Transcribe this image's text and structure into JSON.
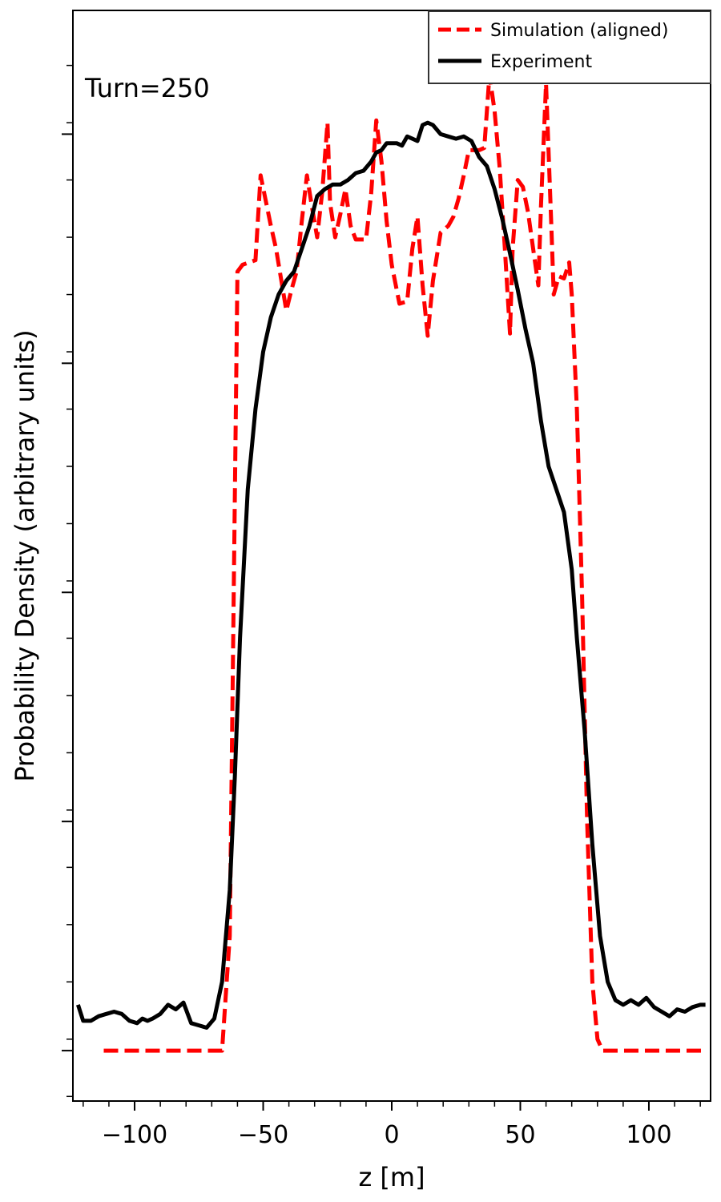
{
  "chart_data": {
    "type": "line",
    "title": "",
    "xlabel": "z [m]",
    "ylabel": "Probability Density (arbitrary units)",
    "annotation": "Turn=250",
    "xlim": [
      -124,
      124
    ],
    "ylim": [
      -0.22,
      4.54
    ],
    "x_ticks": [
      -100,
      -50,
      0,
      50,
      100
    ],
    "x_tick_labels": [
      "−100",
      "−50",
      "0",
      "50",
      "100"
    ],
    "y_ticks": [
      0,
      1,
      2,
      3,
      4
    ],
    "y_tick_labels_shown": false,
    "grid": false,
    "legend_position": "top-right",
    "series": [
      {
        "name": "Simulation (aligned)",
        "color": "#ff0000",
        "style": "dashed",
        "x": [
          -112,
          -66,
          -63,
          -60,
          -58,
          -53,
          -51,
          -47,
          -45,
          -41,
          -39,
          -37,
          -35,
          -33,
          -31,
          -29,
          -27,
          -25,
          -24,
          -22,
          -20,
          -18,
          -16,
          -14,
          -12,
          -10,
          -8,
          -6,
          -4,
          -2,
          0,
          3,
          6,
          8,
          10,
          12,
          14,
          16,
          19,
          22,
          24,
          26,
          28,
          30,
          34,
          36,
          38,
          40,
          42,
          44,
          46,
          47,
          49,
          51,
          53,
          55,
          57,
          58,
          60,
          62,
          63,
          65,
          67,
          69,
          70,
          72,
          74,
          76,
          78,
          80,
          82,
          85,
          88,
          122
        ],
        "y": [
          0,
          0,
          0.5,
          3.4,
          3.43,
          3.45,
          3.82,
          3.6,
          3.5,
          3.23,
          3.32,
          3.4,
          3.62,
          3.82,
          3.68,
          3.55,
          3.75,
          4.05,
          3.7,
          3.55,
          3.65,
          3.76,
          3.6,
          3.54,
          3.54,
          3.54,
          3.74,
          4.06,
          3.88,
          3.62,
          3.43,
          3.26,
          3.27,
          3.5,
          3.64,
          3.34,
          3.12,
          3.36,
          3.57,
          3.6,
          3.64,
          3.72,
          3.82,
          3.93,
          3.93,
          3.94,
          4.26,
          4.1,
          3.85,
          3.5,
          3.13,
          3.5,
          3.8,
          3.77,
          3.66,
          3.5,
          3.34,
          3.68,
          4.22,
          3.62,
          3.3,
          3.38,
          3.37,
          3.44,
          3.3,
          2.8,
          2.0,
          1.0,
          0.3,
          0.05,
          0,
          0,
          0,
          0
        ]
      },
      {
        "name": "Experiment",
        "color": "#000000",
        "style": "solid",
        "x": [
          -122,
          -120,
          -117,
          -114,
          -111,
          -108,
          -105,
          -102,
          -99,
          -97,
          -95,
          -93,
          -90,
          -87,
          -84,
          -81,
          -78,
          -75,
          -72,
          -69,
          -66,
          -63,
          -61,
          -59,
          -56,
          -53,
          -50,
          -47,
          -44,
          -41,
          -38,
          -35,
          -32,
          -29,
          -26,
          -23,
          -20,
          -17,
          -14,
          -11,
          -8,
          -6,
          -4,
          -2,
          0,
          2,
          4,
          6,
          8,
          10,
          12,
          14,
          16,
          19,
          22,
          25,
          28,
          31,
          34,
          37,
          40,
          43,
          46,
          49,
          52,
          55,
          58,
          61,
          64,
          67,
          70,
          72,
          75,
          78,
          81,
          84,
          87,
          90,
          93,
          96,
          99,
          102,
          105,
          108,
          111,
          114,
          117,
          120,
          122
        ],
        "y": [
          0.2,
          0.13,
          0.13,
          0.15,
          0.16,
          0.17,
          0.16,
          0.13,
          0.12,
          0.14,
          0.13,
          0.14,
          0.16,
          0.2,
          0.18,
          0.21,
          0.12,
          0.11,
          0.1,
          0.14,
          0.3,
          0.7,
          1.2,
          1.8,
          2.45,
          2.8,
          3.05,
          3.2,
          3.3,
          3.36,
          3.4,
          3.5,
          3.6,
          3.73,
          3.76,
          3.78,
          3.78,
          3.8,
          3.83,
          3.84,
          3.88,
          3.92,
          3.93,
          3.96,
          3.96,
          3.96,
          3.95,
          3.99,
          3.98,
          3.97,
          4.04,
          4.05,
          4.04,
          4.0,
          3.99,
          3.98,
          3.99,
          3.97,
          3.9,
          3.86,
          3.76,
          3.63,
          3.48,
          3.32,
          3.15,
          3.0,
          2.75,
          2.55,
          2.45,
          2.35,
          2.1,
          1.8,
          1.4,
          0.9,
          0.5,
          0.3,
          0.22,
          0.2,
          0.22,
          0.2,
          0.23,
          0.19,
          0.17,
          0.15,
          0.18,
          0.17,
          0.19,
          0.2,
          0.2
        ]
      }
    ]
  }
}
